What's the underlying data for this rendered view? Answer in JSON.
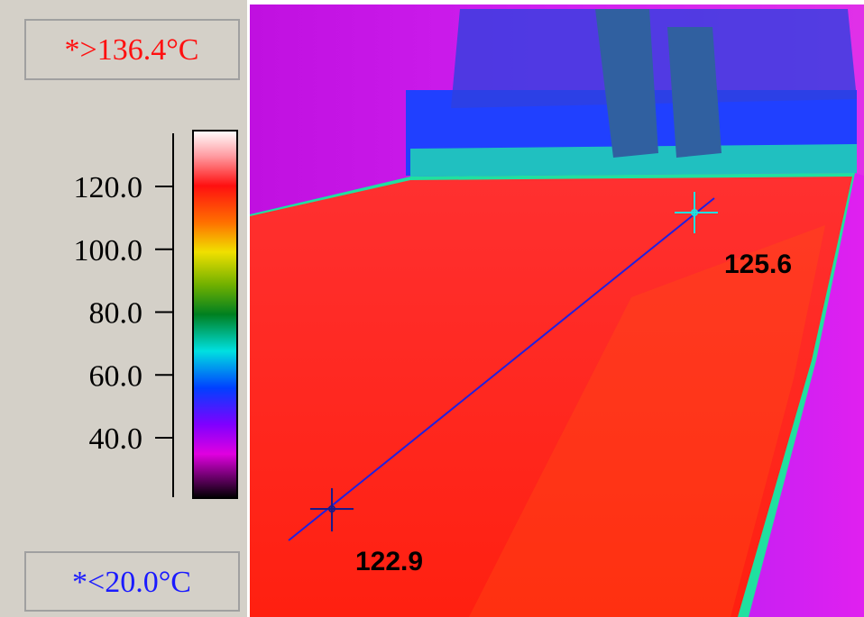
{
  "scale": {
    "max_label": "*>136.4°C",
    "min_label": "*<20.0°C",
    "ticks": [
      "120.0",
      "100.0",
      "80.0",
      "60.0",
      "40.0"
    ]
  },
  "image": {
    "spots": [
      {
        "label": "125.6"
      },
      {
        "label": "122.9"
      }
    ]
  }
}
